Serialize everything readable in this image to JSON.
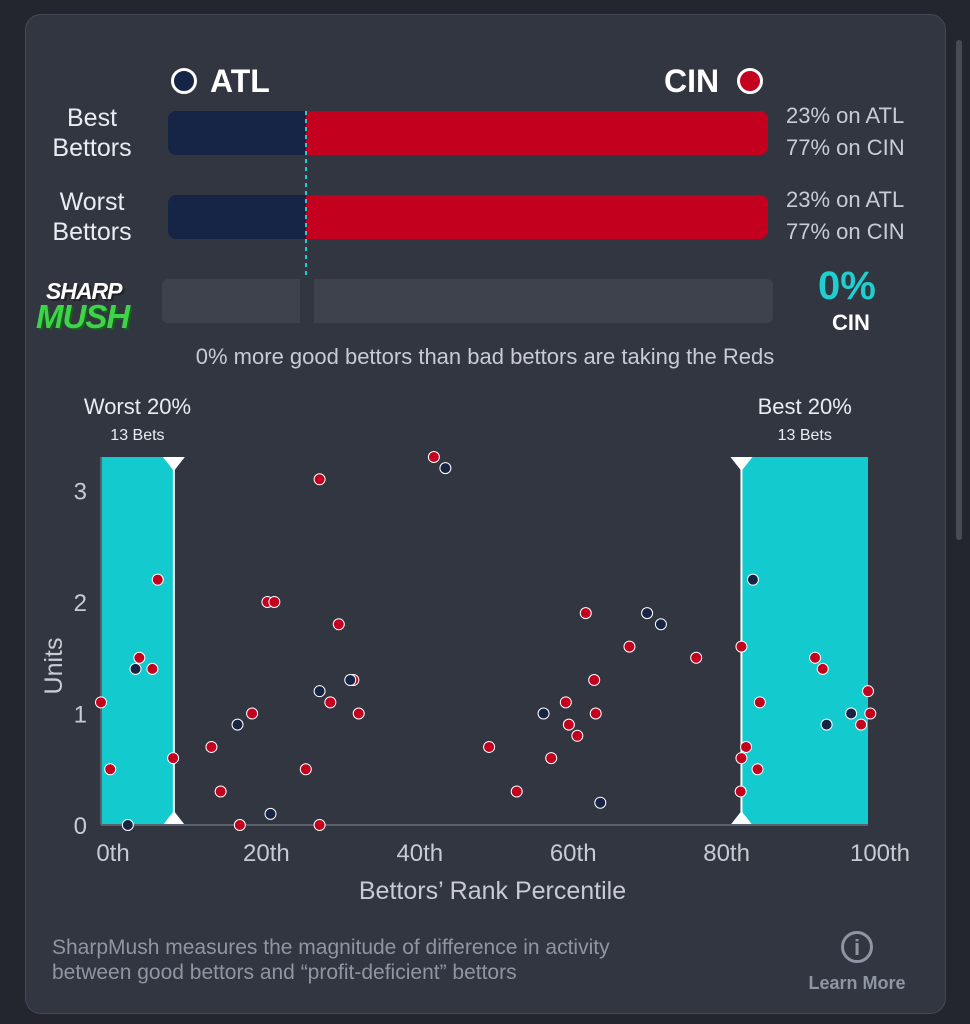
{
  "teams": {
    "away": {
      "name": "ATL",
      "color": "#162546"
    },
    "home": {
      "name": "CIN",
      "color": "#c4001f"
    }
  },
  "rows": [
    {
      "label_line1": "Best",
      "label_line2": "Bettors",
      "away_pct": 23,
      "home_pct": 77,
      "away_text": "23% on ATL",
      "home_text": "77% on CIN"
    },
    {
      "label_line1": "Worst",
      "label_line2": "Bettors",
      "away_pct": 23,
      "home_pct": 77,
      "away_text": "23% on ATL",
      "home_text": "77% on CIN"
    }
  ],
  "sharpmush": {
    "logo_line1": "SHARP",
    "logo_line2": "MUSH",
    "value": "0%",
    "team": "CIN",
    "summary": "0% more good bettors than bad bettors are taking the Reds",
    "accent": "#1fcfcf"
  },
  "chart_data": {
    "type": "scatter",
    "xlabel": "Bettors’ Rank Percentile",
    "ylabel": "Units",
    "xlim": [
      0,
      100
    ],
    "ylim": [
      0,
      3.3
    ],
    "x_ticks": [
      "0th",
      "20th",
      "40th",
      "60th",
      "80th",
      "100th"
    ],
    "y_ticks": [
      "0",
      "1",
      "2",
      "3"
    ],
    "bands": [
      {
        "label": "Worst 20%",
        "sub": "13 Bets",
        "from": 0,
        "to": 9.5
      },
      {
        "label": "Best 20%",
        "sub": "13 Bets",
        "from": 83.5,
        "to": 100
      }
    ],
    "series": [
      {
        "name": "CIN",
        "color": "#c4001f",
        "points": [
          [
            0,
            1.1
          ],
          [
            1.2,
            0.5
          ],
          [
            5,
            1.5
          ],
          [
            6.7,
            1.4
          ],
          [
            7.4,
            2.2
          ],
          [
            9.4,
            0.6
          ],
          [
            14.4,
            0.7
          ],
          [
            15.6,
            0.3
          ],
          [
            18.1,
            0
          ],
          [
            19.7,
            1
          ],
          [
            21.7,
            2
          ],
          [
            22.6,
            2
          ],
          [
            26.7,
            0.5
          ],
          [
            28.5,
            3.1
          ],
          [
            28.5,
            0
          ],
          [
            29.9,
            1.1
          ],
          [
            31,
            1.8
          ],
          [
            32.9,
            1.3
          ],
          [
            33.6,
            1
          ],
          [
            43.4,
            3.3
          ],
          [
            50.6,
            0.7
          ],
          [
            54.2,
            0.3
          ],
          [
            58.7,
            0.6
          ],
          [
            60.6,
            1.1
          ],
          [
            61,
            0.9
          ],
          [
            62.1,
            0.8
          ],
          [
            63.2,
            1.9
          ],
          [
            64.3,
            1.3
          ],
          [
            64.5,
            1
          ],
          [
            68.9,
            1.6
          ],
          [
            77.6,
            1.5
          ],
          [
            83.5,
            1.6
          ],
          [
            83.5,
            0.6
          ],
          [
            84.1,
            0.7
          ],
          [
            83.4,
            0.3
          ],
          [
            85.9,
            1.1
          ],
          [
            85.6,
            0.5
          ],
          [
            93.1,
            1.5
          ],
          [
            94.1,
            1.4
          ],
          [
            99.1,
            0.9
          ],
          [
            100,
            1.2
          ],
          [
            100.3,
            1
          ]
        ]
      },
      {
        "name": "ATL",
        "color": "#162546",
        "points": [
          [
            3.5,
            0
          ],
          [
            4.5,
            1.4
          ],
          [
            17.8,
            0.9
          ],
          [
            22.1,
            0.1
          ],
          [
            28.5,
            1.2
          ],
          [
            32.5,
            1.3
          ],
          [
            44.9,
            3.2
          ],
          [
            57.7,
            1
          ],
          [
            65.1,
            0.2
          ],
          [
            71.2,
            1.9
          ],
          [
            73,
            1.8
          ],
          [
            85,
            2.2
          ],
          [
            94.6,
            0.9
          ],
          [
            97.8,
            1
          ]
        ]
      }
    ]
  },
  "footer": {
    "line1": "SharpMush measures the magnitude of difference in activity",
    "line2": "between good bettors and “profit-deficient” bettors",
    "learn_more": "Learn More",
    "info_glyph": "i"
  }
}
